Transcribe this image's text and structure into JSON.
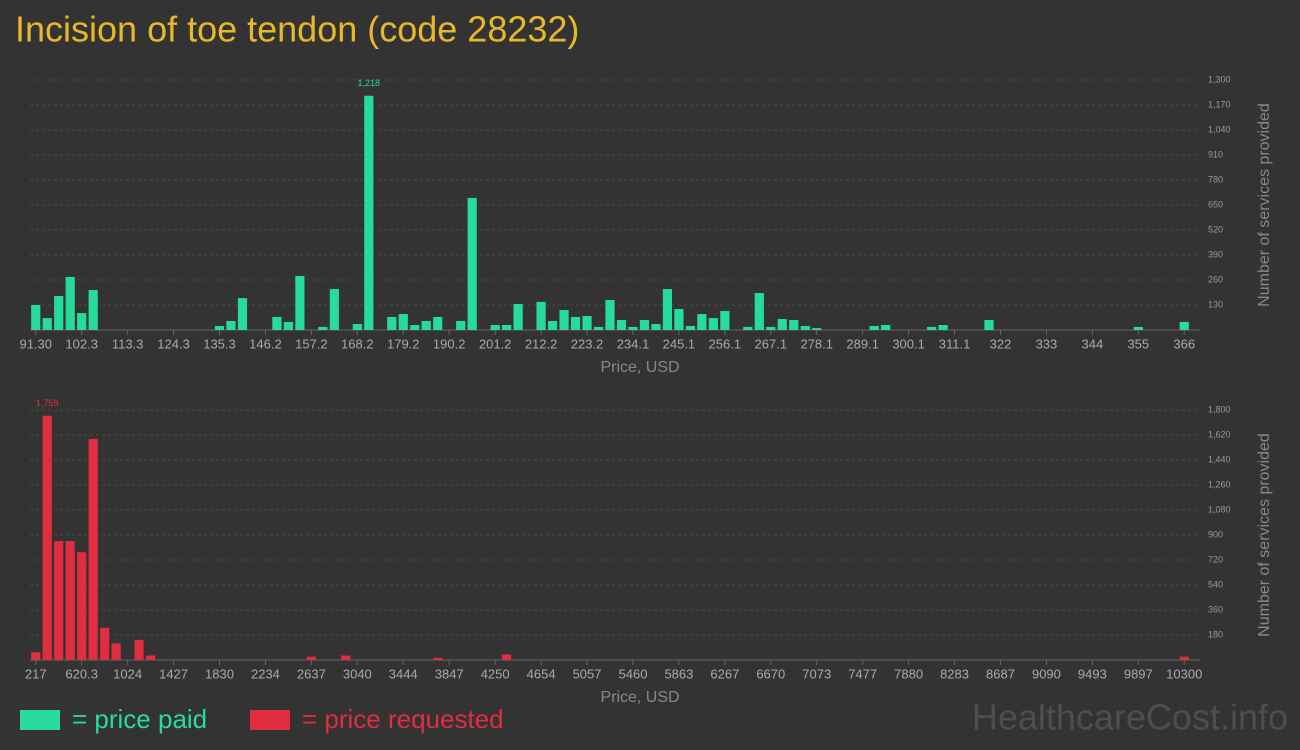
{
  "title": "Incision of toe tendon (code 28232)",
  "watermark": "HealthcareCost.info",
  "legend": [
    {
      "label": "= price paid",
      "color": "#27dc9a"
    },
    {
      "label": "= price requested",
      "color": "#e02d3f"
    }
  ],
  "chart_data": [
    {
      "type": "bar",
      "x_label": "Price, USD",
      "y_label": "Number of services provided",
      "color": "#27dc9a",
      "grid": true,
      "ylim": [
        0,
        1300
      ],
      "yticks": [
        130,
        260,
        390,
        520,
        650,
        780,
        910,
        {
          "value": 1040,
          "label": "1,040"
        },
        {
          "value": 1170,
          "label": "1,170"
        },
        {
          "value": 1300,
          "label": "1,300"
        }
      ],
      "categories": [
        "91.30",
        null,
        null,
        null,
        "102.3",
        null,
        null,
        null,
        "113.3",
        null,
        null,
        null,
        "124.3",
        null,
        null,
        null,
        "135.3",
        null,
        null,
        null,
        "146.2",
        null,
        null,
        null,
        "157.2",
        null,
        null,
        null,
        "168.2",
        null,
        null,
        null,
        "179.2",
        null,
        null,
        null,
        "190.2",
        null,
        null,
        null,
        "201.2",
        null,
        null,
        null,
        "212.2",
        null,
        null,
        null,
        "223.2",
        null,
        null,
        null,
        "234.1",
        null,
        null,
        null,
        "245.1",
        null,
        null,
        null,
        "256.1",
        null,
        null,
        null,
        "267.1",
        null,
        null,
        null,
        "278.1",
        null,
        null,
        null,
        "289.1",
        null,
        null,
        null,
        "300.1",
        null,
        null,
        null,
        "311.1",
        null,
        null,
        null,
        "322",
        null,
        null,
        null,
        "333",
        null,
        null,
        null,
        "344",
        null,
        null,
        null,
        "355",
        null,
        null,
        null,
        "366"
      ],
      "values": [
        130,
        62,
        177,
        276,
        88,
        208,
        0,
        0,
        0,
        0,
        0,
        0,
        0,
        0,
        0,
        0,
        21,
        47,
        166,
        0,
        0,
        68,
        42,
        281,
        0,
        16,
        213,
        0,
        31,
        1218,
        0,
        68,
        83,
        26,
        47,
        68,
        0,
        47,
        687,
        0,
        26,
        26,
        135,
        0,
        146,
        47,
        104,
        68,
        73,
        16,
        156,
        52,
        16,
        52,
        31,
        213,
        109,
        21,
        83,
        62,
        99,
        0,
        16,
        192,
        16,
        57,
        52,
        21,
        10,
        0,
        0,
        0,
        0,
        21,
        26,
        0,
        0,
        0,
        16,
        26,
        0,
        0,
        0,
        52,
        0,
        0,
        0,
        0,
        0,
        0,
        0,
        0,
        0,
        0,
        0,
        0,
        16,
        0,
        0,
        0,
        42
      ],
      "value_labels": [
        null,
        null,
        null,
        null,
        null,
        null,
        null,
        null,
        null,
        null,
        null,
        null,
        null,
        null,
        null,
        null,
        null,
        null,
        null,
        null,
        null,
        null,
        null,
        null,
        null,
        null,
        null,
        null,
        null,
        "1,218",
        null,
        null,
        null,
        null,
        null,
        null,
        null,
        null,
        null,
        null,
        null,
        null,
        null,
        null,
        null,
        null,
        null,
        null,
        null,
        null,
        null,
        null,
        null,
        null,
        null,
        null,
        null,
        null,
        null,
        null,
        null,
        null,
        null,
        null,
        null,
        null,
        null,
        null,
        null,
        null,
        null,
        null,
        null,
        null,
        null,
        null,
        null,
        null,
        null,
        null,
        null,
        null,
        null,
        null,
        null,
        null,
        null,
        null,
        null,
        null,
        null,
        null,
        null,
        null,
        null,
        null,
        null,
        null,
        null,
        null,
        null
      ]
    },
    {
      "type": "bar",
      "x_label": "Price, USD",
      "y_label": "Number of services provided",
      "color": "#e02d3f",
      "grid": true,
      "ylim": [
        0,
        1800
      ],
      "yticks": [
        180,
        360,
        540,
        720,
        900,
        {
          "value": 1080,
          "label": "1,080"
        },
        {
          "value": 1260,
          "label": "1,260"
        },
        {
          "value": 1440,
          "label": "1,440"
        },
        {
          "value": 1620,
          "label": "1,620"
        },
        {
          "value": 1800,
          "label": "1,800"
        }
      ],
      "categories": [
        "217",
        null,
        null,
        null,
        "620.3",
        null,
        null,
        null,
        "1024",
        null,
        null,
        null,
        "1427",
        null,
        null,
        null,
        "1830",
        null,
        null,
        null,
        "2234",
        null,
        null,
        null,
        "2637",
        null,
        null,
        null,
        "3040",
        null,
        null,
        null,
        "3444",
        null,
        null,
        null,
        "3847",
        null,
        null,
        null,
        "4250",
        null,
        null,
        null,
        "4654",
        null,
        null,
        null,
        "5057",
        null,
        null,
        null,
        "5460",
        null,
        null,
        null,
        "5863",
        null,
        null,
        null,
        "6267",
        null,
        null,
        null,
        "6670",
        null,
        null,
        null,
        "7073",
        null,
        null,
        null,
        "7477",
        null,
        null,
        null,
        "7880",
        null,
        null,
        null,
        "8283",
        null,
        null,
        null,
        "8687",
        null,
        null,
        null,
        "9090",
        null,
        null,
        null,
        "9493",
        null,
        null,
        null,
        "9897",
        null,
        null,
        null,
        "10300"
      ],
      "values": [
        56,
        1759,
        856,
        856,
        776,
        1592,
        232,
        120,
        0,
        144,
        32,
        0,
        0,
        0,
        0,
        0,
        0,
        0,
        0,
        0,
        0,
        0,
        0,
        0,
        24,
        0,
        0,
        32,
        0,
        0,
        0,
        0,
        0,
        0,
        0,
        16,
        0,
        0,
        0,
        0,
        0,
        40,
        0,
        0,
        0,
        0,
        0,
        0,
        0,
        0,
        0,
        0,
        0,
        0,
        0,
        0,
        0,
        0,
        0,
        0,
        0,
        0,
        0,
        0,
        0,
        0,
        0,
        0,
        0,
        0,
        0,
        0,
        0,
        0,
        0,
        0,
        0,
        0,
        0,
        0,
        0,
        0,
        0,
        0,
        0,
        0,
        0,
        0,
        0,
        0,
        0,
        0,
        0,
        0,
        0,
        0,
        0,
        0,
        0,
        0,
        24
      ],
      "value_labels": [
        null,
        "1,759",
        null,
        null,
        null,
        null,
        null,
        null,
        null,
        null,
        null,
        null,
        null,
        null,
        null,
        null,
        null,
        null,
        null,
        null,
        null,
        null,
        null,
        null,
        null,
        null,
        null,
        null,
        null,
        null,
        null,
        null,
        null,
        null,
        null,
        null,
        null,
        null,
        null,
        null,
        null,
        null,
        null,
        null,
        null,
        null,
        null,
        null,
        null,
        null,
        null,
        null,
        null,
        null,
        null,
        null,
        null,
        null,
        null,
        null,
        null,
        null,
        null,
        null,
        null,
        null,
        null,
        null,
        null,
        null,
        null,
        null,
        null,
        null,
        null,
        null,
        null,
        null,
        null,
        null,
        null,
        null,
        null,
        null,
        null,
        null,
        null,
        null,
        null,
        null,
        null,
        null,
        null,
        null,
        null,
        null,
        null,
        null,
        null,
        null,
        null
      ]
    }
  ]
}
